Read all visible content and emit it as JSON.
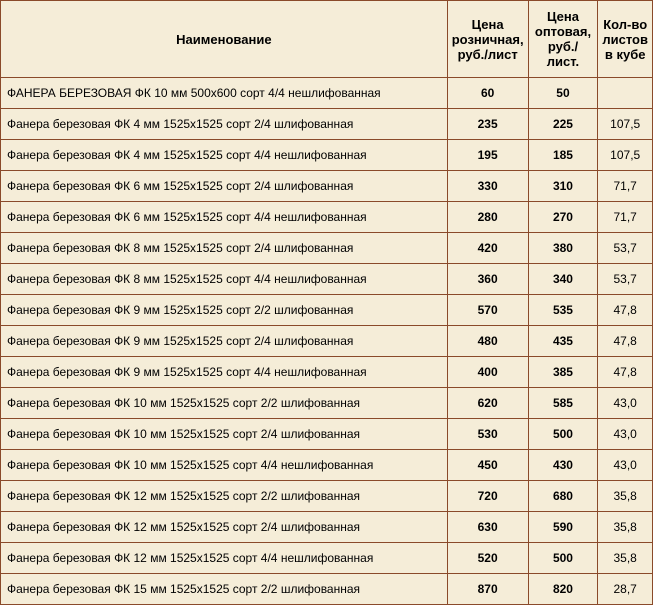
{
  "table": {
    "headers": {
      "name": "Наименование",
      "retail": "Цена розничная, руб./лист",
      "wholesale": "Цена оптовая, руб./ лист.",
      "count": "Кол-во листов в кубе"
    },
    "rows": [
      {
        "name": "ФАНЕРА БЕРЕЗОВАЯ ФК 10 мм 500х600 сорт 4/4 нешлифованная",
        "retail": "60",
        "wholesale": "50",
        "count": ""
      },
      {
        "name": "Фанера березовая ФК 4 мм 1525х1525 сорт 2/4 шлифованная",
        "retail": "235",
        "wholesale": "225",
        "count": "107,5"
      },
      {
        "name": "Фанера березовая ФК 4 мм 1525х1525 сорт 4/4 нешлифованная",
        "retail": "195",
        "wholesale": "185",
        "count": "107,5"
      },
      {
        "name": "Фанера березовая ФК 6 мм 1525х1525 сорт 2/4 шлифованная",
        "retail": "330",
        "wholesale": "310",
        "count": "71,7"
      },
      {
        "name": "Фанера березовая ФК 6 мм 1525х1525 сорт 4/4 нешлифованная",
        "retail": "280",
        "wholesale": "270",
        "count": "71,7"
      },
      {
        "name": "Фанера березовая ФК 8 мм 1525х1525 сорт 2/4 шлифованная",
        "retail": "420",
        "wholesale": "380",
        "count": "53,7"
      },
      {
        "name": "Фанера березовая ФК 8 мм 1525х1525 сорт 4/4 нешлифованная",
        "retail": "360",
        "wholesale": "340",
        "count": "53,7"
      },
      {
        "name": "Фанера березовая ФК 9 мм 1525х1525 сорт 2/2 шлифованная",
        "retail": "570",
        "wholesale": "535",
        "count": "47,8"
      },
      {
        "name": "Фанера березовая ФК 9 мм 1525х1525 сорт 2/4 шлифованная",
        "retail": "480",
        "wholesale": "435",
        "count": "47,8"
      },
      {
        "name": "Фанера березовая ФК 9 мм 1525х1525 сорт 4/4 нешлифованная",
        "retail": "400",
        "wholesale": "385",
        "count": "47,8"
      },
      {
        "name": "Фанера березовая ФК 10 мм 1525х1525 сорт 2/2 шлифованная",
        "retail": "620",
        "wholesale": "585",
        "count": "43,0"
      },
      {
        "name": "Фанера березовая ФК 10 мм 1525х1525 сорт 2/4 шлифованная",
        "retail": "530",
        "wholesale": "500",
        "count": "43,0"
      },
      {
        "name": "Фанера березовая ФК 10 мм 1525х1525 сорт 4/4 нешлифованная",
        "retail": "450",
        "wholesale": "430",
        "count": "43,0"
      },
      {
        "name": "Фанера березовая ФК 12 мм 1525х1525 сорт 2/2 шлифованная",
        "retail": "720",
        "wholesale": "680",
        "count": "35,8"
      },
      {
        "name": "Фанера березовая ФК 12 мм 1525х1525 сорт 2/4 шлифованная",
        "retail": "630",
        "wholesale": "590",
        "count": "35,8"
      },
      {
        "name": "Фанера березовая ФК 12 мм 1525х1525 сорт 4/4 нешлифованная",
        "retail": "520",
        "wholesale": "500",
        "count": "35,8"
      },
      {
        "name": "Фанера березовая ФК 15 мм 1525х1525 сорт 2/2 шлифованная",
        "retail": "870",
        "wholesale": "820",
        "count": "28,7"
      }
    ],
    "colors": {
      "background": "#f5edd8",
      "border": "#8a4a2a",
      "text": "#000000"
    }
  }
}
